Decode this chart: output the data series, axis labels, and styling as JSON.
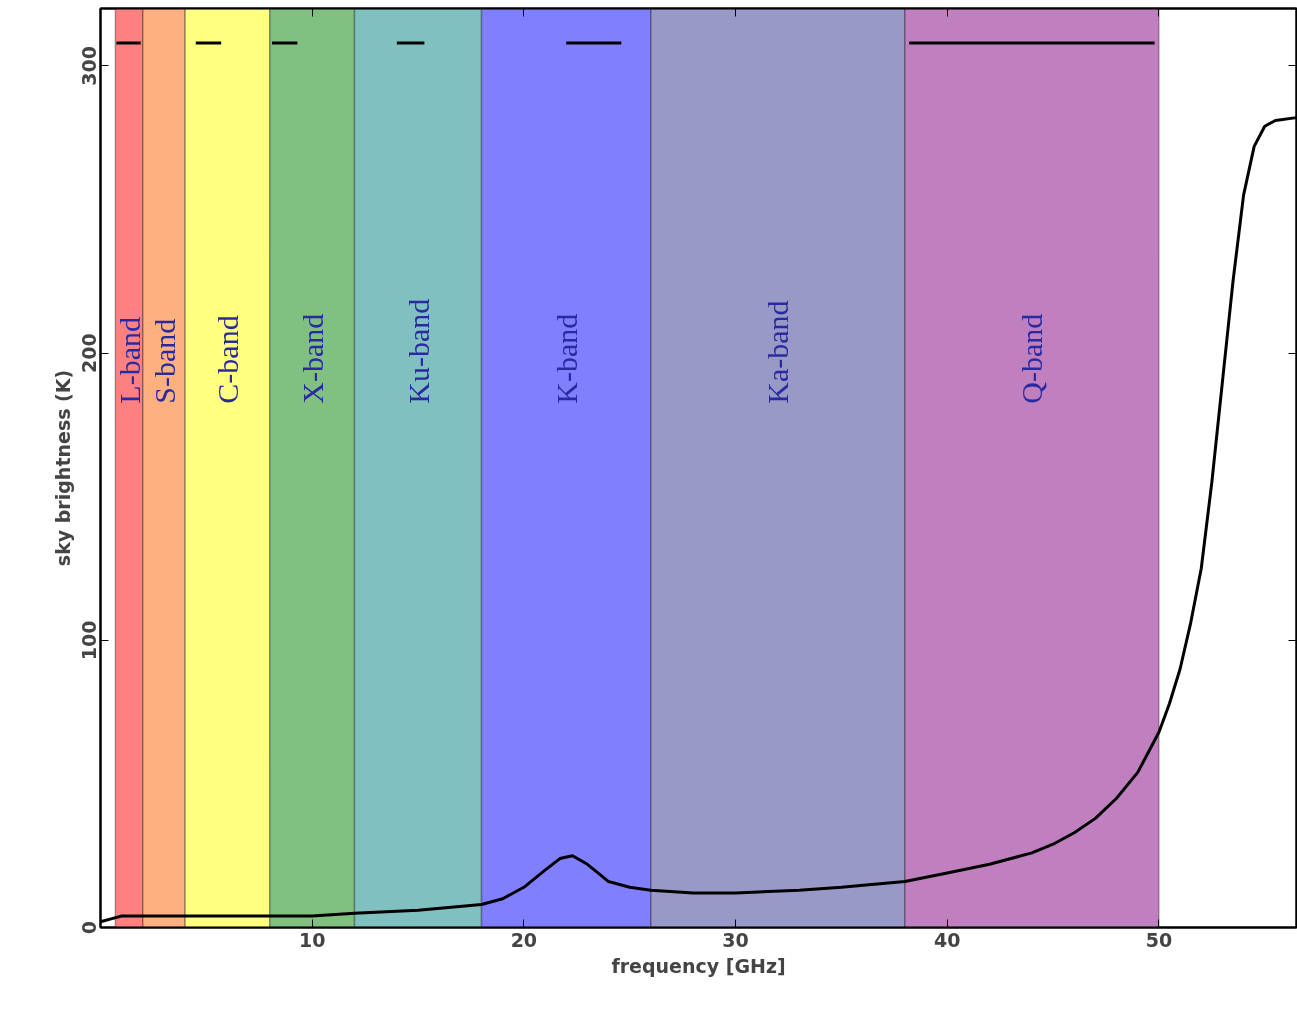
{
  "chart_data": {
    "type": "line",
    "xlabel": "frequency [GHz]",
    "ylabel": "sky brightness (K)",
    "xlim": [
      0,
      56.5
    ],
    "ylim": [
      0,
      320
    ],
    "xticks": [
      10,
      20,
      30,
      40,
      50
    ],
    "yticks": [
      0,
      100,
      200,
      300
    ],
    "grid": false,
    "series": [
      {
        "color": "#000000",
        "x": [
          0,
          0.5,
          1,
          2,
          4,
          6,
          8,
          10,
          12,
          15,
          18,
          19,
          20,
          21,
          21.7,
          22.3,
          23,
          23.5,
          24,
          25,
          26,
          28,
          30,
          33,
          35,
          38,
          40,
          42,
          44,
          45,
          46,
          47,
          48,
          49,
          50,
          50.5,
          51,
          51.5,
          52,
          52.5,
          53,
          53.5,
          54,
          54.5,
          55,
          55.5,
          56.5
        ],
        "values": [
          2,
          3,
          4,
          4,
          4,
          4,
          4,
          4,
          5,
          6,
          8,
          10,
          14,
          20,
          24,
          25,
          22,
          19,
          16,
          14,
          13,
          12,
          12,
          13,
          14,
          16,
          19,
          22,
          26,
          29,
          33,
          38,
          45,
          54,
          68,
          78,
          90,
          106,
          125,
          155,
          190,
          225,
          255,
          272,
          279,
          281,
          282
        ]
      },
      {
        "color": "#000000",
        "x": [
          0.75,
          1.9
        ],
        "values": [
          308,
          308
        ]
      },
      {
        "color": "#000000",
        "x": [
          4.5,
          5.7
        ],
        "values": [
          308,
          308
        ]
      },
      {
        "color": "#000000",
        "x": [
          8.1,
          9.3
        ],
        "values": [
          308,
          308
        ]
      },
      {
        "color": "#000000",
        "x": [
          14,
          15.3
        ],
        "values": [
          308,
          308
        ]
      },
      {
        "color": "#000000",
        "x": [
          22,
          24.6
        ],
        "values": [
          308,
          308
        ]
      },
      {
        "color": "#000000",
        "x": [
          38.2,
          49.8
        ],
        "values": [
          308,
          308
        ]
      }
    ],
    "bands": [
      {
        "axis": "x",
        "from": 0.7,
        "to": 2,
        "label": "L-band",
        "color": "#ff8080"
      },
      {
        "axis": "x",
        "from": 2,
        "to": 4,
        "label": "S-band",
        "color": "#ffb080"
      },
      {
        "axis": "x",
        "from": 4,
        "to": 8,
        "label": "C-band",
        "color": "#ffff80"
      },
      {
        "axis": "x",
        "from": 8,
        "to": 12,
        "label": "X-band",
        "color": "#80c080"
      },
      {
        "axis": "x",
        "from": 12,
        "to": 18,
        "label": "Ku-band",
        "color": "#80c0c0"
      },
      {
        "axis": "x",
        "from": 18,
        "to": 26,
        "label": "K-band",
        "color": "#8080ff"
      },
      {
        "axis": "x",
        "from": 26,
        "to": 38,
        "label": "Ka-band",
        "color": "#9999c8"
      },
      {
        "axis": "x",
        "from": 38,
        "to": 50,
        "label": "Q-band",
        "color": "#c080c0"
      }
    ]
  }
}
